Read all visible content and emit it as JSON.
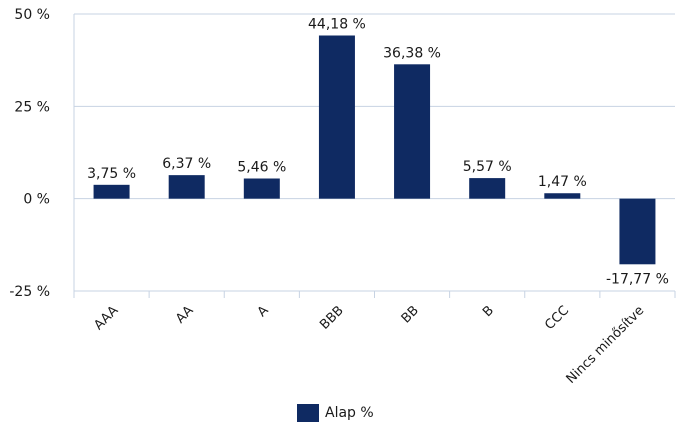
{
  "chart_data": {
    "type": "bar",
    "categories": [
      "AAA",
      "AA",
      "A",
      "BBB",
      "BB",
      "B",
      "CCC",
      "Nincs minősítve"
    ],
    "series": [
      {
        "name": "Alap %",
        "values": [
          3.75,
          6.37,
          5.46,
          44.18,
          36.38,
          5.57,
          1.47,
          -17.77
        ],
        "labels": [
          "3,75 %",
          "6,37 %",
          "5,46 %",
          "44,18 %",
          "36,38 %",
          "5,57 %",
          "1,47 %",
          "-17,77 %"
        ]
      }
    ],
    "yticks": [
      50,
      25,
      0,
      -25
    ],
    "ytick_labels": [
      "50 %",
      "25 %",
      "0 %",
      "-25 %"
    ],
    "ylim": [
      -25,
      50
    ],
    "grid": true,
    "legend_position": "bottom",
    "bar_color": "#0f2a62",
    "grid_color": "#c7d3e3"
  }
}
